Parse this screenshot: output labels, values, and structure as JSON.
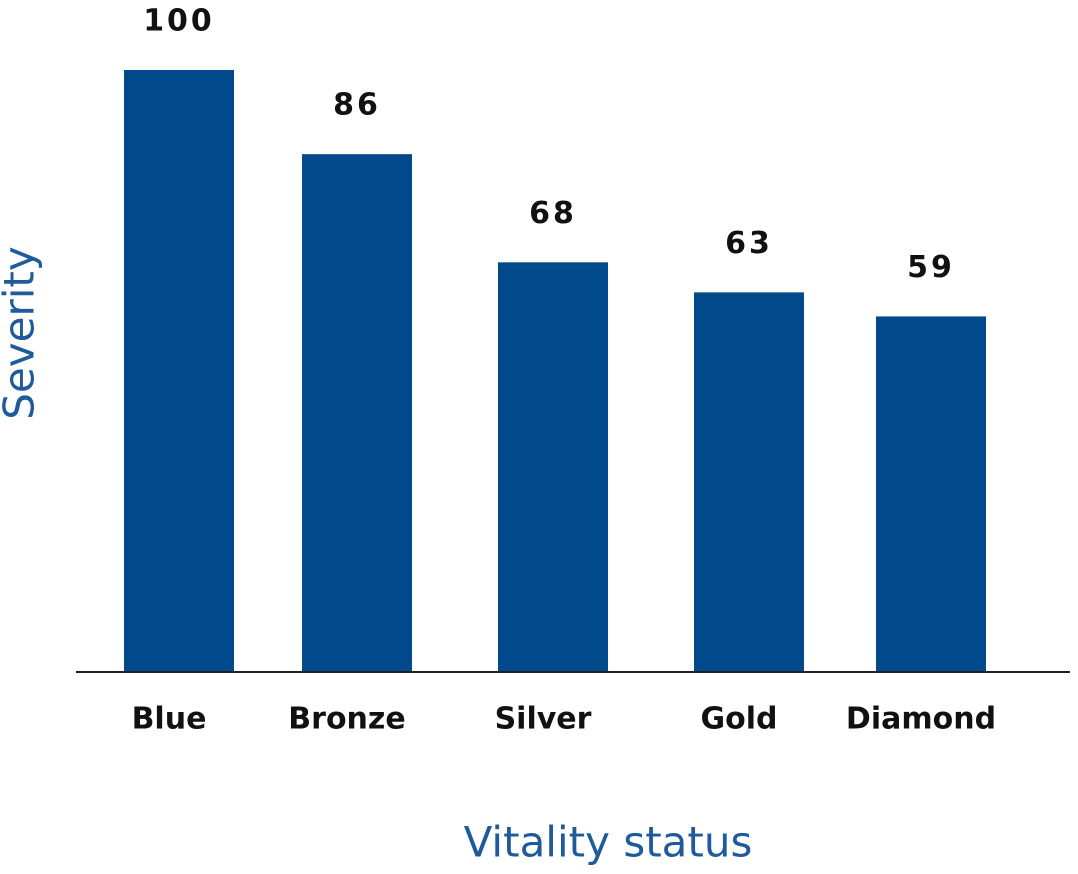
{
  "chart_data": {
    "type": "bar",
    "categories": [
      "Blue",
      "Bronze",
      "Silver",
      "Gold",
      "Diamond"
    ],
    "values": [
      100,
      86,
      68,
      63,
      59
    ],
    "color": "#004a8c",
    "ylim": [
      0,
      100
    ],
    "x_label": "Vitality status",
    "y_label": "Severity"
  }
}
